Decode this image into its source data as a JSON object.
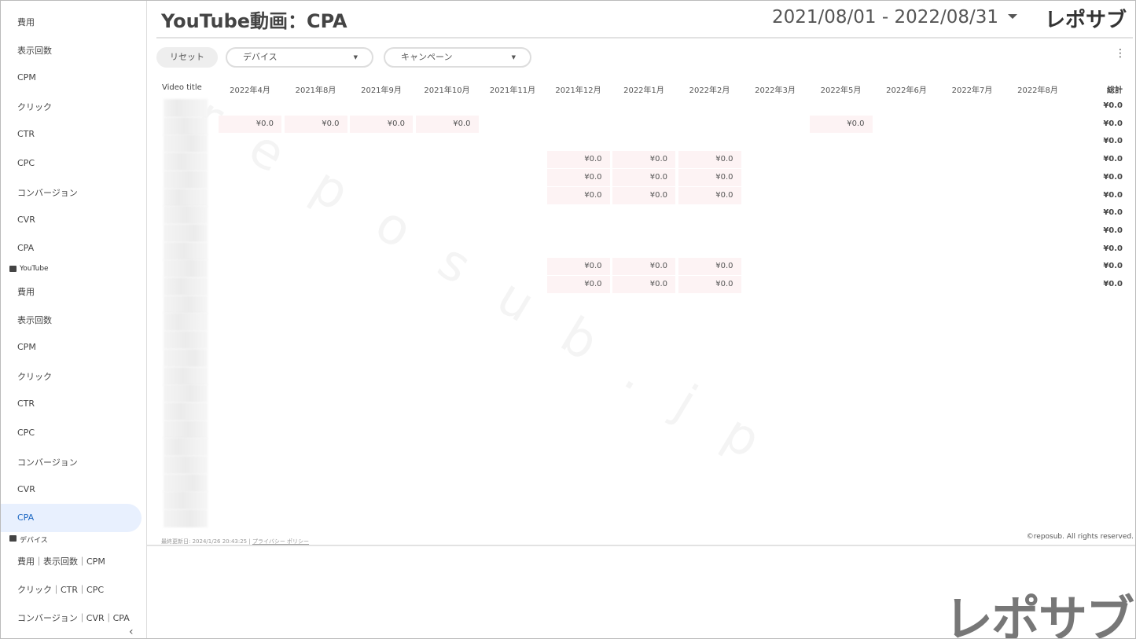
{
  "sidebar": {
    "sections": [
      {
        "items": [
          "費用",
          "表示回数",
          "CPM",
          "クリック",
          "CTR",
          "CPC",
          "コンバージョン",
          "CVR",
          "CPA"
        ]
      },
      {
        "label": "YouTube",
        "items": [
          "費用",
          "表示回数",
          "CPM",
          "クリック",
          "CTR",
          "CPC",
          "コンバージョン",
          "CVR",
          "CPA"
        ]
      },
      {
        "label": "デバイス",
        "items": [
          "費用｜表示回数｜CPM",
          "クリック｜CTR｜CPC",
          "コンバージョン｜CVR｜CPA"
        ]
      }
    ]
  },
  "header": {
    "title": "YouTube動画：CPA",
    "date_range": "2021/08/01 - 2022/08/31",
    "logo": "レポサブ"
  },
  "filters": {
    "reset": "リセット",
    "device": "デバイス",
    "campaign": "キャンペーン"
  },
  "table": {
    "columns": [
      "Video title",
      "2022年4月",
      "2021年8月",
      "2021年9月",
      "2021年10月",
      "2021年11月",
      "2021年12月",
      "2022年1月",
      "2022年2月",
      "2022年3月",
      "2022年5月",
      "2022年6月",
      "2022年7月",
      "2022年8月",
      "総計"
    ],
    "rows": [
      [
        null,
        null,
        null,
        null,
        null,
        null,
        null,
        null,
        null,
        null,
        null,
        null,
        null,
        "¥0.0"
      ],
      [
        "¥0.0",
        "¥0.0",
        "¥0.0",
        "¥0.0",
        null,
        null,
        null,
        null,
        null,
        "¥0.0",
        null,
        null,
        null,
        "¥0.0"
      ],
      [
        null,
        null,
        null,
        null,
        null,
        null,
        null,
        null,
        null,
        null,
        null,
        null,
        null,
        "¥0.0"
      ],
      [
        null,
        null,
        null,
        null,
        null,
        "¥0.0",
        "¥0.0",
        "¥0.0",
        null,
        null,
        null,
        null,
        null,
        "¥0.0"
      ],
      [
        null,
        null,
        null,
        null,
        null,
        "¥0.0",
        "¥0.0",
        "¥0.0",
        null,
        null,
        null,
        null,
        null,
        "¥0.0"
      ],
      [
        null,
        null,
        null,
        null,
        null,
        "¥0.0",
        "¥0.0",
        "¥0.0",
        null,
        null,
        null,
        null,
        null,
        "¥0.0"
      ],
      [
        null,
        null,
        null,
        null,
        null,
        null,
        null,
        null,
        null,
        null,
        null,
        null,
        null,
        "¥0.0"
      ],
      [
        null,
        null,
        null,
        null,
        null,
        null,
        null,
        null,
        null,
        null,
        null,
        null,
        null,
        "¥0.0"
      ],
      [
        null,
        null,
        null,
        null,
        null,
        null,
        null,
        null,
        null,
        null,
        null,
        null,
        null,
        "¥0.0"
      ],
      [
        null,
        null,
        null,
        null,
        null,
        "¥0.0",
        "¥0.0",
        "¥0.0",
        null,
        null,
        null,
        null,
        null,
        "¥0.0"
      ],
      [
        null,
        null,
        null,
        null,
        null,
        "¥0.0",
        "¥0.0",
        "¥0.0",
        null,
        null,
        null,
        null,
        null,
        "¥0.0"
      ]
    ]
  },
  "footer": {
    "updated": "最終更新日: 2024/1/26 20:43:25",
    "privacy": "プライバシー ポリシー",
    "copyright": "©reposub. All rights reserved.",
    "logo": "レポサブ"
  },
  "watermark": "reposub.jp"
}
